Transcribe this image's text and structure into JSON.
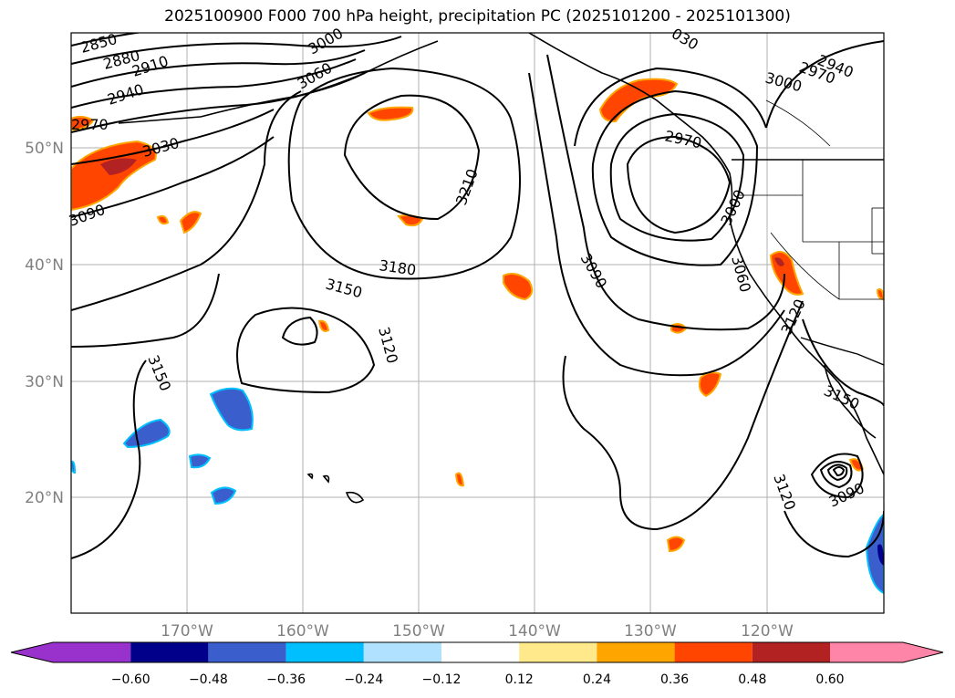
{
  "title": "2025100900 F000 700 hPa height, precipitation PC (2025101200 - 2025101300)",
  "lat_labels": [
    "50°N",
    "40°N",
    "30°N",
    "20°N"
  ],
  "lon_labels": [
    "170°W",
    "160°W",
    "150°W",
    "140°W",
    "130°W",
    "120°W"
  ],
  "contour_labels": [
    "2850",
    "2880",
    "2910",
    "2940",
    "2970",
    "3030",
    "3060",
    "3000",
    "3090",
    "3210",
    "3180",
    "3150",
    "3120",
    "3150",
    "030",
    "2970",
    "3000",
    "2940",
    "2970",
    "3000",
    "3060",
    "3090",
    "3120",
    "3150",
    "3120",
    "3090"
  ],
  "colorbar": {
    "ticks": [
      "−0.60",
      "−0.48",
      "−0.36",
      "−0.24",
      "−0.12",
      "0.12",
      "0.24",
      "0.36",
      "0.48",
      "0.60"
    ],
    "colors": [
      "#9932cc",
      "#00008b",
      "#3a5fcd",
      "#00bfff",
      "#b0e2ff",
      "#ffffff",
      "#ffe98a",
      "#ffa500",
      "#ff4500",
      "#b22222",
      "#ff85a8"
    ]
  }
}
